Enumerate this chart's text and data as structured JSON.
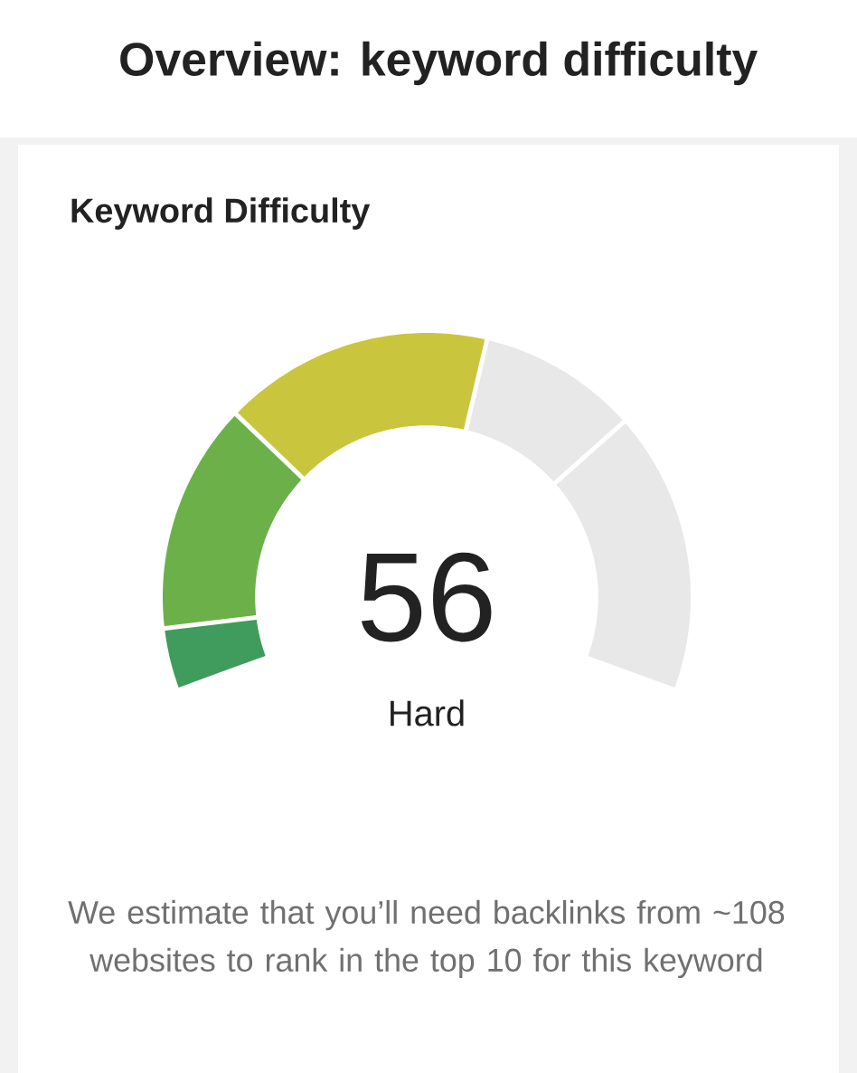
{
  "chart_data": {
    "type": "donut",
    "title": "Overview: keyword difficulty",
    "subtitle": "Keyword Difficulty",
    "categories": [
      null,
      null,
      null,
      null,
      null
    ],
    "values": [
      6,
      23,
      27,
      16,
      28
    ],
    "colors": [
      "#3f9c5c",
      "#6cb04a",
      "#c9c63e",
      "#e8e8e8",
      "#e8e8e8"
    ],
    "annotations": [
      "56",
      "Hard",
      "We estimate that you’ll need backlinks from ~108 websites to rank in the top 10 for this keyword"
    ]
  }
}
